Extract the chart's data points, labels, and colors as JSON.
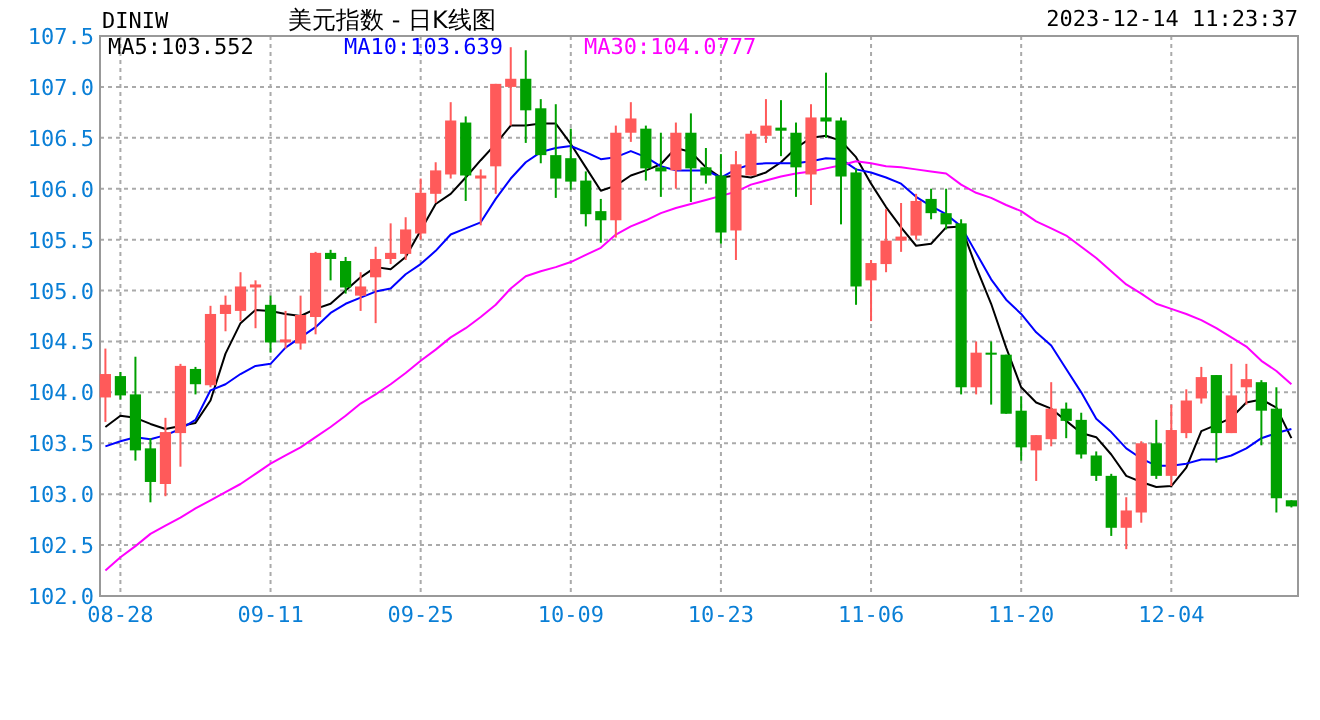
{
  "chart_data": {
    "type": "candlestick",
    "title": "美元指数 - 日K线图",
    "subtitle": "DINIW",
    "annotations": [
      "2023-12-14 11:23:37"
    ],
    "categories": [
      null,
      "08-28",
      null,
      null,
      null,
      null,
      null,
      null,
      null,
      null,
      null,
      "09-11",
      null,
      null,
      null,
      null,
      null,
      null,
      null,
      null,
      null,
      "09-25",
      null,
      null,
      null,
      null,
      null,
      null,
      null,
      null,
      null,
      "10-09",
      null,
      null,
      null,
      null,
      null,
      null,
      null,
      null,
      null,
      "10-23",
      null,
      null,
      null,
      null,
      null,
      null,
      null,
      null,
      null,
      "11-06",
      null,
      null,
      null,
      null,
      null,
      null,
      null,
      null,
      null,
      "11-20",
      null,
      null,
      null,
      null,
      null,
      null,
      null,
      null,
      null,
      "12-04",
      null,
      null,
      null,
      null,
      null,
      null,
      null,
      null
    ],
    "ohlc": [
      [
        103.95,
        104.43,
        103.71,
        104.18
      ],
      [
        104.16,
        104.2,
        103.93,
        103.97
      ],
      [
        103.98,
        104.35,
        103.33,
        103.43
      ],
      [
        103.45,
        103.55,
        102.92,
        103.12
      ],
      [
        103.1,
        103.75,
        102.98,
        103.61
      ],
      [
        103.6,
        104.28,
        103.27,
        104.26
      ],
      [
        104.23,
        104.25,
        103.98,
        104.08
      ],
      [
        104.07,
        104.85,
        104.05,
        104.77
      ],
      [
        104.77,
        104.95,
        104.6,
        104.86
      ],
      [
        104.8,
        105.18,
        104.7,
        105.04
      ],
      [
        105.03,
        105.1,
        104.63,
        105.06
      ],
      [
        104.86,
        104.95,
        104.39,
        104.49
      ],
      [
        104.49,
        104.8,
        104.43,
        104.52
      ],
      [
        104.48,
        104.95,
        104.42,
        104.76
      ],
      [
        104.74,
        105.38,
        104.57,
        105.37
      ],
      [
        105.37,
        105.4,
        105.1,
        105.31
      ],
      [
        105.29,
        105.33,
        104.97,
        105.03
      ],
      [
        104.95,
        105.18,
        104.8,
        105.04
      ],
      [
        105.13,
        105.43,
        104.68,
        105.31
      ],
      [
        105.31,
        105.66,
        105.26,
        105.37
      ],
      [
        105.36,
        105.72,
        105.3,
        105.6
      ],
      [
        105.56,
        106.1,
        105.5,
        105.96
      ],
      [
        105.95,
        106.26,
        105.86,
        106.18
      ],
      [
        106.14,
        106.85,
        106.1,
        106.67
      ],
      [
        106.65,
        106.71,
        105.88,
        106.13
      ],
      [
        106.1,
        106.19,
        105.64,
        106.13
      ],
      [
        106.22,
        107.03,
        105.95,
        107.03
      ],
      [
        107.0,
        107.39,
        106.62,
        107.08
      ],
      [
        107.08,
        107.36,
        106.45,
        106.77
      ],
      [
        106.79,
        106.88,
        106.25,
        106.33
      ],
      [
        106.33,
        106.83,
        105.91,
        106.1
      ],
      [
        106.3,
        106.59,
        105.99,
        106.07
      ],
      [
        106.08,
        106.17,
        105.63,
        105.75
      ],
      [
        105.78,
        105.9,
        105.47,
        105.69
      ],
      [
        105.69,
        106.62,
        105.52,
        106.55
      ],
      [
        106.55,
        106.85,
        106.46,
        106.69
      ],
      [
        106.59,
        106.62,
        106.08,
        106.2
      ],
      [
        106.21,
        106.55,
        105.92,
        106.17
      ],
      [
        106.18,
        106.65,
        106.0,
        106.55
      ],
      [
        106.55,
        106.74,
        105.87,
        106.2
      ],
      [
        106.21,
        106.4,
        106.05,
        106.13
      ],
      [
        106.13,
        106.34,
        105.46,
        105.57
      ],
      [
        105.59,
        106.37,
        105.3,
        106.24
      ],
      [
        106.13,
        106.57,
        106.13,
        106.54
      ],
      [
        106.52,
        106.88,
        106.45,
        106.62
      ],
      [
        106.6,
        106.87,
        106.32,
        106.57
      ],
      [
        106.55,
        106.65,
        105.92,
        106.21
      ],
      [
        106.14,
        106.83,
        105.84,
        106.7
      ],
      [
        106.7,
        107.14,
        106.5,
        106.66
      ],
      [
        106.67,
        106.7,
        105.65,
        106.12
      ],
      [
        106.16,
        106.2,
        104.86,
        105.04
      ],
      [
        105.1,
        105.3,
        104.7,
        105.27
      ],
      [
        105.26,
        105.8,
        105.18,
        105.49
      ],
      [
        105.49,
        105.86,
        105.38,
        105.53
      ],
      [
        105.54,
        105.95,
        105.5,
        105.88
      ],
      [
        105.9,
        106.0,
        105.7,
        105.76
      ],
      [
        105.76,
        106.0,
        105.6,
        105.65
      ],
      [
        105.66,
        105.7,
        103.98,
        104.05
      ],
      [
        104.05,
        104.5,
        103.98,
        104.39
      ],
      [
        104.39,
        104.5,
        103.88,
        104.37
      ],
      [
        104.37,
        104.37,
        103.79,
        103.79
      ],
      [
        103.82,
        103.96,
        103.33,
        103.46
      ],
      [
        103.43,
        103.58,
        103.13,
        103.58
      ],
      [
        103.54,
        104.1,
        103.47,
        103.84
      ],
      [
        103.84,
        103.9,
        103.55,
        103.72
      ],
      [
        103.73,
        103.8,
        103.35,
        103.39
      ],
      [
        103.38,
        103.42,
        103.13,
        103.18
      ],
      [
        103.18,
        103.2,
        102.59,
        102.67
      ],
      [
        102.67,
        102.97,
        102.46,
        102.84
      ],
      [
        102.82,
        103.52,
        102.72,
        103.5
      ],
      [
        103.5,
        103.73,
        103.15,
        103.18
      ],
      [
        103.18,
        103.88,
        103.08,
        103.63
      ],
      [
        103.6,
        104.03,
        103.55,
        103.92
      ],
      [
        103.94,
        104.25,
        103.89,
        104.15
      ],
      [
        104.17,
        104.17,
        103.31,
        103.6
      ],
      [
        103.6,
        104.28,
        103.6,
        103.97
      ],
      [
        104.05,
        104.28,
        103.88,
        104.13
      ],
      [
        104.1,
        104.12,
        103.48,
        103.82
      ],
      [
        103.84,
        104.05,
        102.82,
        102.96
      ],
      [
        102.94,
        102.94,
        102.87,
        102.88
      ]
    ],
    "series": [
      {
        "type": "line",
        "name": "MA5:103.552",
        "color": "#000000",
        "values": [
          103.66,
          103.77,
          103.75,
          103.69,
          103.64,
          103.67,
          103.7,
          103.92,
          104.38,
          104.68,
          104.81,
          104.8,
          104.77,
          104.75,
          104.82,
          104.87,
          105.0,
          105.13,
          105.23,
          105.21,
          105.33,
          105.59,
          105.85,
          105.95,
          106.11,
          106.28,
          106.44,
          106.62,
          106.62,
          106.64,
          106.64,
          106.44,
          106.21,
          105.98,
          106.03,
          106.13,
          106.18,
          106.24,
          106.4,
          106.36,
          106.21,
          106.11,
          106.13,
          106.11,
          106.16,
          106.26,
          106.4,
          106.5,
          106.52,
          106.47,
          106.31,
          106.05,
          105.82,
          105.62,
          105.44,
          105.46,
          105.62,
          105.63,
          105.23,
          104.87,
          104.44,
          104.05,
          103.9,
          103.84,
          103.72,
          103.6,
          103.56,
          103.39,
          103.18,
          103.12,
          103.07,
          103.08,
          103.26,
          103.62,
          103.68,
          103.75,
          103.9,
          103.93,
          103.85,
          103.55
        ]
      },
      {
        "type": "line",
        "name": "MA10:103.639",
        "color": "#0000ff",
        "values": [
          103.47,
          103.52,
          103.56,
          103.54,
          103.58,
          103.64,
          103.73,
          104.02,
          104.08,
          104.18,
          104.26,
          104.28,
          104.44,
          104.54,
          104.64,
          104.78,
          104.87,
          104.93,
          104.99,
          105.02,
          105.16,
          105.26,
          105.39,
          105.55,
          105.61,
          105.67,
          105.9,
          106.1,
          106.26,
          106.36,
          106.4,
          106.42,
          106.36,
          106.29,
          106.31,
          106.37,
          106.31,
          106.22,
          106.18,
          106.18,
          106.18,
          106.11,
          106.19,
          106.24,
          106.25,
          106.25,
          106.25,
          106.27,
          106.3,
          106.29,
          106.19,
          106.16,
          106.11,
          106.05,
          105.92,
          105.83,
          105.75,
          105.63,
          105.37,
          105.11,
          104.91,
          104.77,
          104.59,
          104.46,
          104.23,
          104.0,
          103.74,
          103.61,
          103.45,
          103.35,
          103.28,
          103.28,
          103.3,
          103.34,
          103.34,
          103.38,
          103.45,
          103.55,
          103.6,
          103.64
        ]
      },
      {
        "type": "line",
        "name": "MA30:104.0777",
        "color": "#ff00ff",
        "values": [
          102.25,
          102.38,
          102.49,
          102.61,
          102.69,
          102.77,
          102.86,
          102.94,
          103.02,
          103.1,
          103.2,
          103.3,
          103.38,
          103.46,
          103.56,
          103.66,
          103.77,
          103.89,
          103.98,
          104.08,
          104.19,
          104.31,
          104.42,
          104.54,
          104.63,
          104.74,
          104.86,
          105.02,
          105.14,
          105.19,
          105.23,
          105.28,
          105.35,
          105.42,
          105.55,
          105.63,
          105.69,
          105.76,
          105.81,
          105.85,
          105.89,
          105.93,
          105.97,
          106.04,
          106.08,
          106.12,
          106.15,
          106.17,
          106.2,
          106.23,
          106.27,
          106.25,
          106.22,
          106.21,
          106.19,
          106.17,
          106.15,
          106.04,
          105.96,
          105.91,
          105.84,
          105.78,
          105.68,
          105.61,
          105.54,
          105.43,
          105.32,
          105.19,
          105.06,
          104.97,
          104.87,
          104.82,
          104.77,
          104.71,
          104.63,
          104.54,
          104.45,
          104.31,
          104.21,
          104.08
        ]
      }
    ],
    "ylim": [
      102,
      107.5
    ],
    "yticks": [
      {
        "value": 102,
        "label": "102.0"
      },
      102.5,
      {
        "value": 103,
        "label": "103.0"
      },
      103.5,
      {
        "value": 104,
        "label": "104.0"
      },
      104.5,
      {
        "value": 105,
        "label": "105.0"
      },
      105.5,
      {
        "value": 106,
        "label": "106.0"
      },
      106.5,
      {
        "value": 107,
        "label": "107.0"
      },
      107.5
    ],
    "grid": true,
    "legend": "top left"
  }
}
